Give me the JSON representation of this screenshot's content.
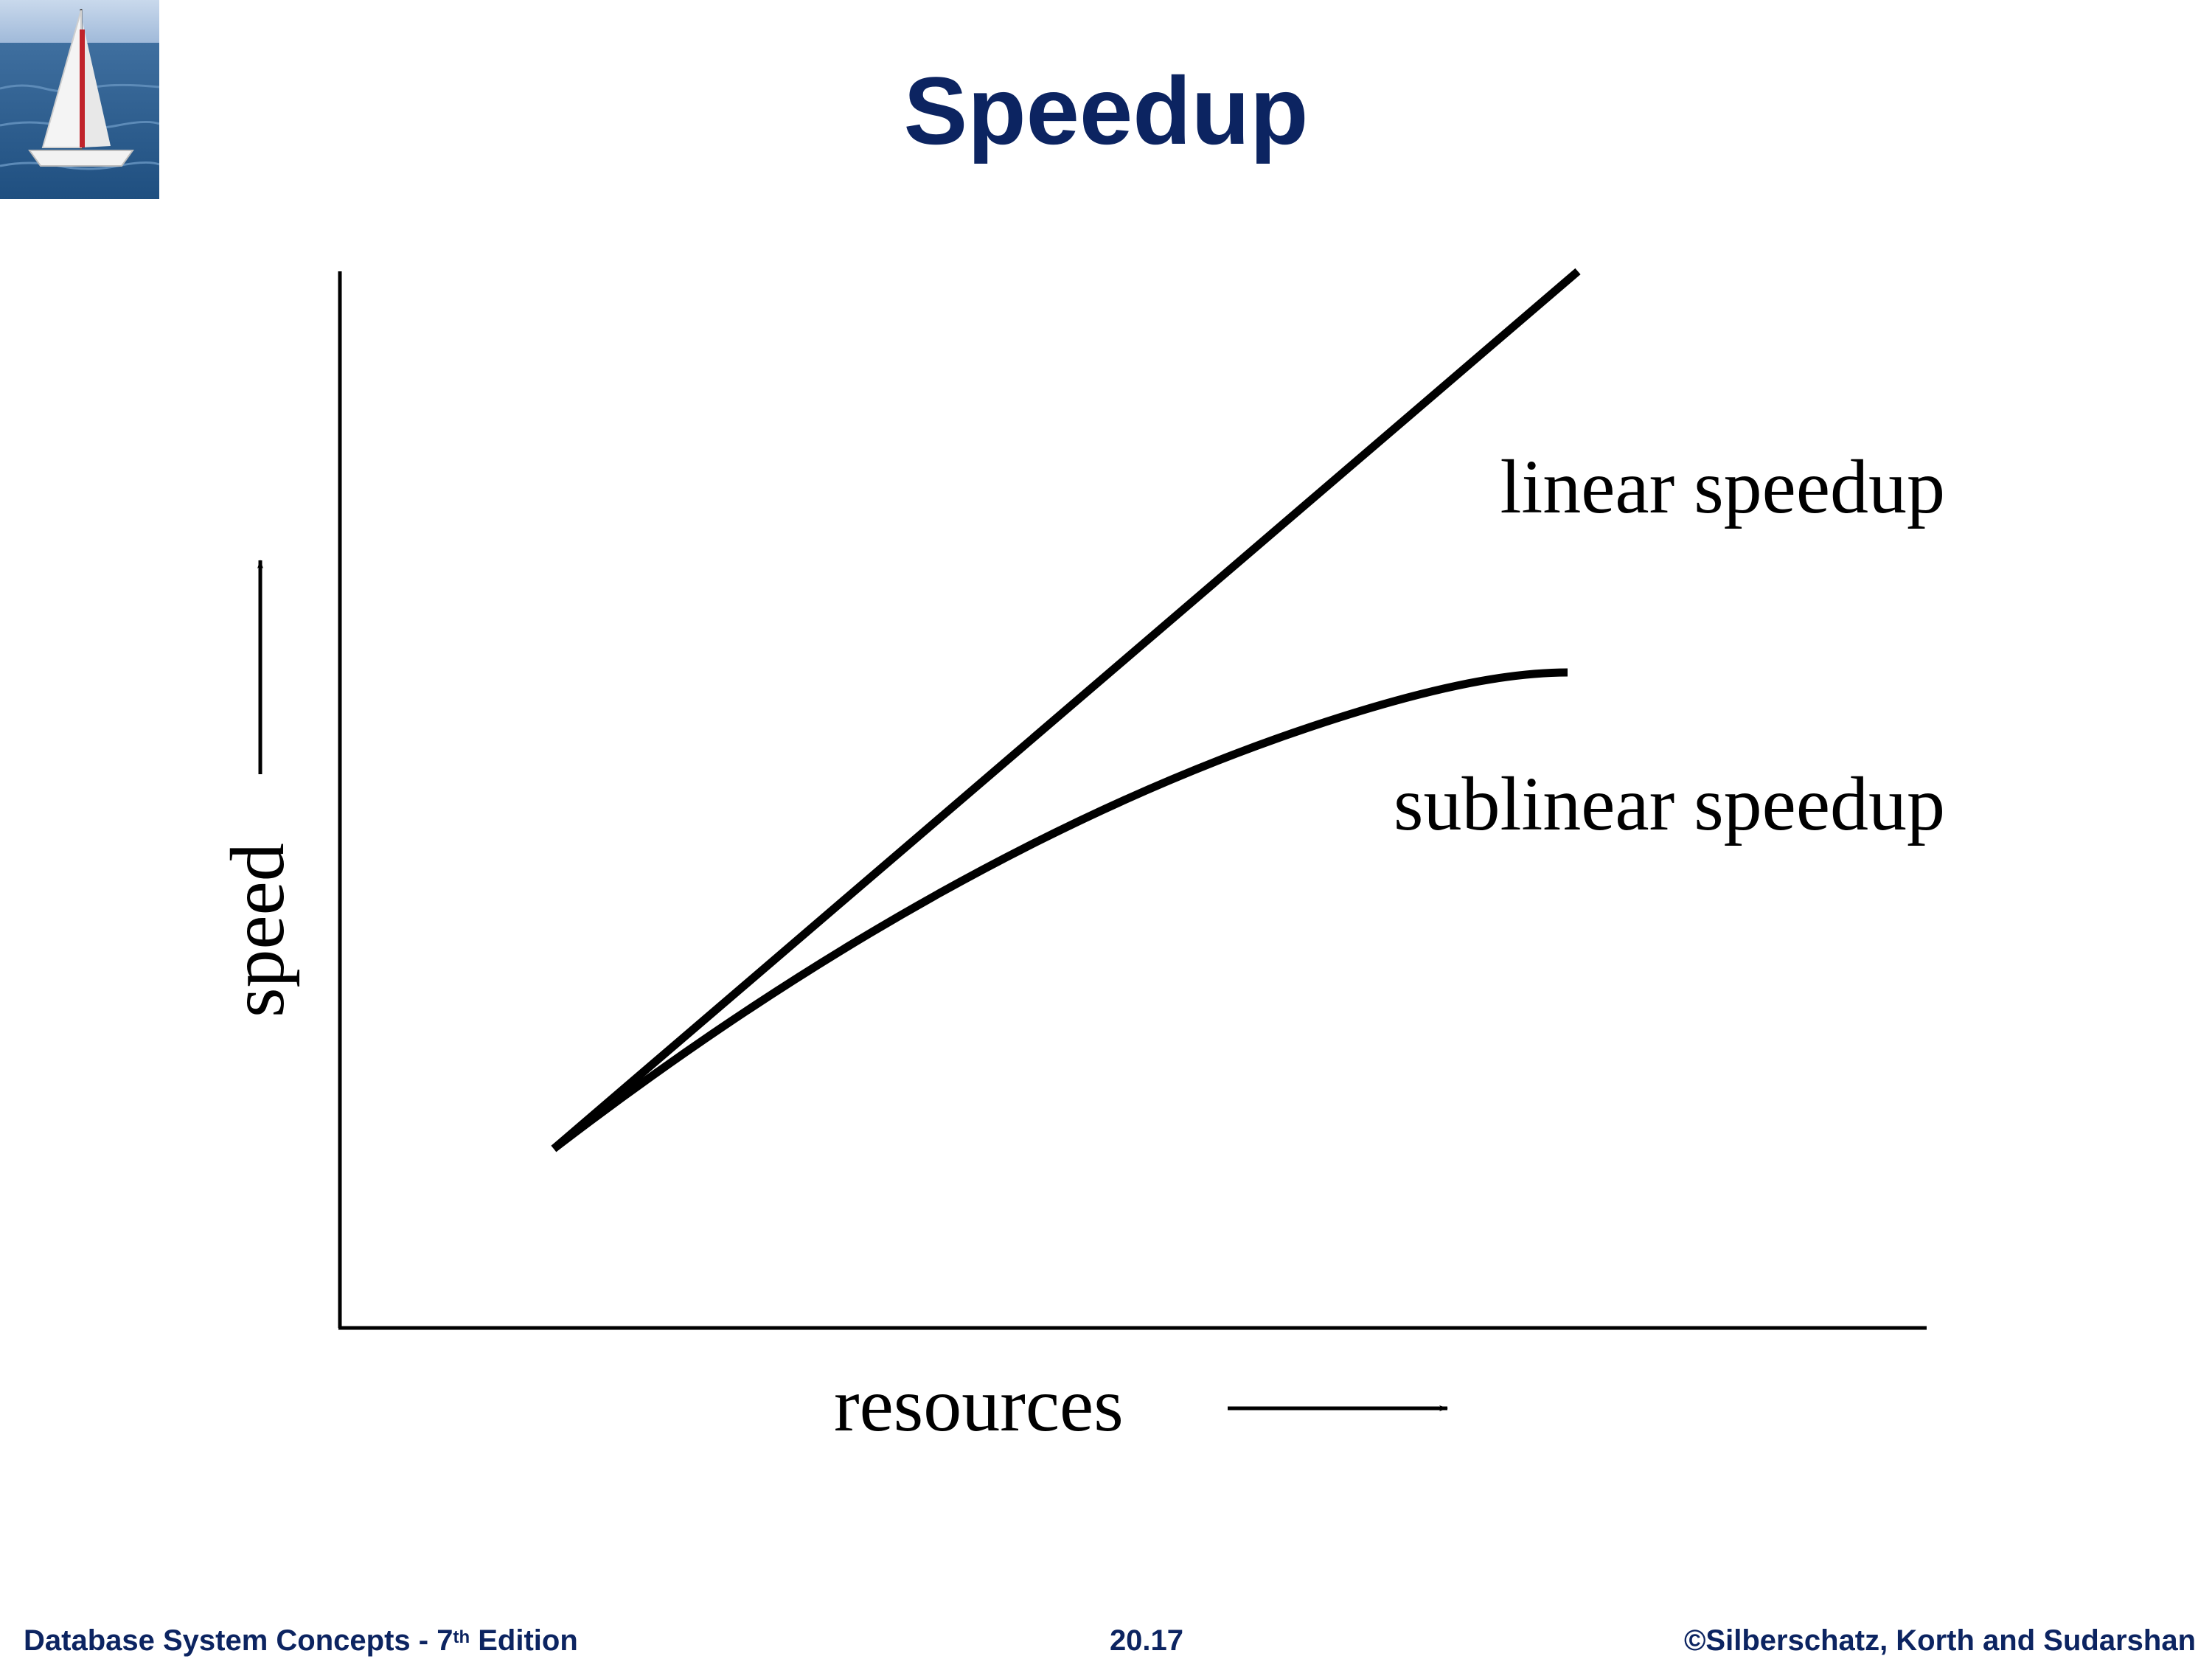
{
  "header": {
    "title": "Speedup",
    "logo_icon": "sailboat-photo-icon"
  },
  "diagram": {
    "y_axis_label": "speed",
    "x_axis_label": "resources",
    "curves": [
      {
        "label": "linear speedup"
      },
      {
        "label": "sublinear speedup"
      }
    ]
  },
  "footer": {
    "book_title": "Database System Concepts - 7",
    "edition_sup": "th",
    "edition_word": " Edition",
    "slide_number": "20.17",
    "copyright": "©Silberschatz, Korth and Sudarshan"
  },
  "colors": {
    "title": "#0c2461",
    "footer_text": "#0c2461",
    "lines": "#000000"
  }
}
